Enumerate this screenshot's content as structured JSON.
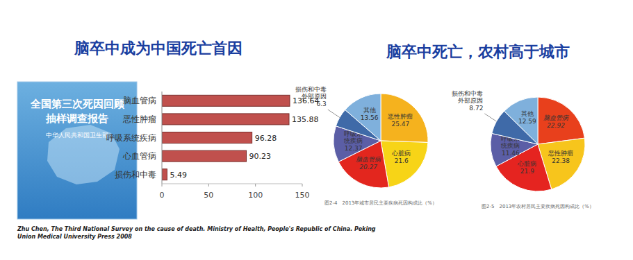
{
  "page": {
    "left_heading": "脑卒中成为中国死亡首因",
    "right_heading": "脑卒中死亡，农村高于城市",
    "book_cover": {
      "title": "全国第三次死因回顾抽样调查报告",
      "publisher": "中华人民共和国卫生部"
    },
    "citation": "Zhu Chen, The Third National Survey on the cause of death. Ministry of Health, People's Republic of China. Peking Union Medical University Press 2008"
  },
  "chart_data": [
    {
      "type": "bar",
      "orientation": "horizontal",
      "categories": [
        "脑血管病",
        "恶性肿瘤",
        "呼吸系统疾病",
        "心血管病",
        "损伤和中毒"
      ],
      "values": [
        136.64,
        135.88,
        96.28,
        90.23,
        5.49
      ],
      "color": "#c0504d",
      "xlim": [
        0,
        150
      ],
      "xticks": [
        0,
        50,
        100,
        150
      ],
      "grid": false,
      "data_labels": true
    },
    {
      "type": "pie",
      "title": "图2-4　2013年城市居民主要疾病死因构成比（%）",
      "categories": [
        "恶性肿瘤",
        "心脏病",
        "脑血管病",
        "呼吸系统疾病",
        "损伤和中毒外部原因",
        "其他"
      ],
      "values": [
        25.47,
        21.6,
        20.27,
        12.37,
        6.3,
        13.56
      ],
      "colors": [
        "#f5b21e",
        "#f7d417",
        "#e3261e",
        "#5b5ea6",
        "#3f6aa8",
        "#7fb0dc"
      ],
      "data_labels": true
    },
    {
      "type": "pie",
      "title": "图2-5　2013年农村居民主要疾病死因构成比（%）",
      "categories": [
        "脑血管病",
        "恶性肿瘤",
        "心脏病",
        "呼吸系统疾病",
        "损伤和中毒外部原因",
        "其他"
      ],
      "values": [
        22.92,
        22.38,
        21.9,
        11.46,
        8.72,
        12.59
      ],
      "colors": [
        "#e8401c",
        "#f7c51c",
        "#e52420",
        "#5b5ea6",
        "#3f6aa8",
        "#7fb0dc"
      ],
      "data_labels": true
    }
  ]
}
